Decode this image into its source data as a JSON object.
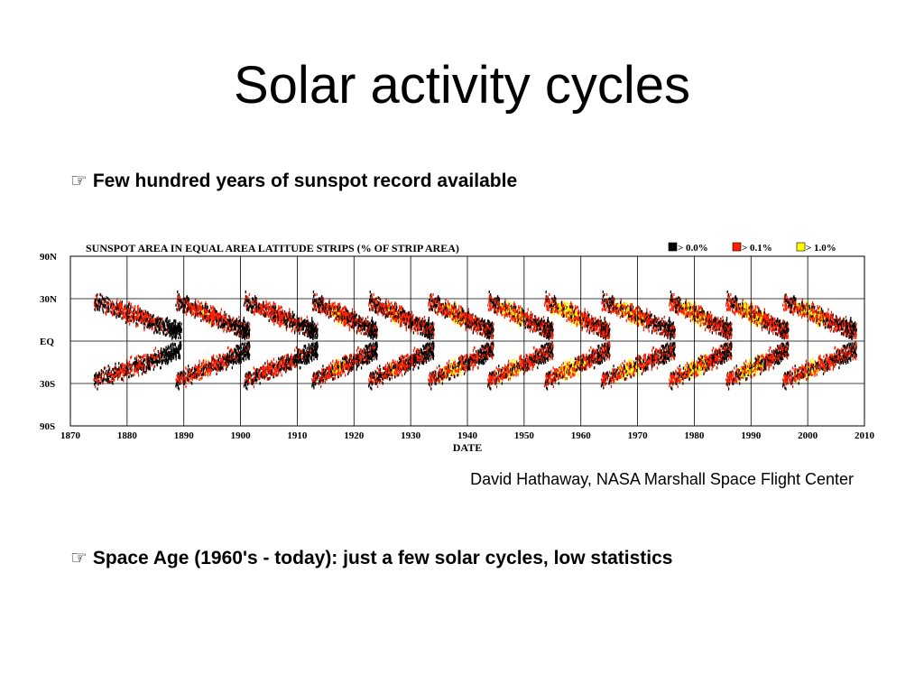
{
  "slide": {
    "title": "Solar activity cycles",
    "bullet_icon": "pointing-hand-icon",
    "bullets": [
      "Few hundred years of sunspot record available",
      "Space Age (1960's - today): just a few solar cycles, low statistics"
    ],
    "credit": "David Hathaway, NASA Marshall Space Flight Center"
  },
  "chart_data": {
    "type": "heatmap",
    "title": "SUNSPOT AREA IN EQUAL AREA LATITUDE STRIPS (% OF STRIP AREA)",
    "xlabel": "DATE",
    "ylabel": "",
    "xlim": [
      1870,
      2010
    ],
    "x_ticks": [
      1870,
      1880,
      1890,
      1900,
      1910,
      1920,
      1930,
      1940,
      1950,
      1960,
      1970,
      1980,
      1990,
      2000,
      2010
    ],
    "y_ticks": [
      "90N",
      "30N",
      "EQ",
      "30S",
      "90S"
    ],
    "y_tick_values": [
      90,
      30,
      0,
      -30,
      -90
    ],
    "legend": [
      {
        "label": "> 0.0%",
        "color": "#000000"
      },
      {
        "label": "> 0.1%",
        "color": "#ff2000"
      },
      {
        "label": "> 1.0%",
        "color": "#ffff00"
      }
    ],
    "legend_position": "top-right",
    "grid": true,
    "cycles": [
      {
        "start": 1874.0,
        "end": 1889.5,
        "intensity": 0.55
      },
      {
        "start": 1888.5,
        "end": 1901.5,
        "intensity": 0.65
      },
      {
        "start": 1900.5,
        "end": 1913.5,
        "intensity": 0.6
      },
      {
        "start": 1912.5,
        "end": 1924.0,
        "intensity": 0.7
      },
      {
        "start": 1922.5,
        "end": 1934.0,
        "intensity": 0.7
      },
      {
        "start": 1933.0,
        "end": 1944.5,
        "intensity": 0.8
      },
      {
        "start": 1943.5,
        "end": 1955.0,
        "intensity": 0.85
      },
      {
        "start": 1953.5,
        "end": 1965.0,
        "intensity": 1.0
      },
      {
        "start": 1963.5,
        "end": 1976.5,
        "intensity": 0.85
      },
      {
        "start": 1975.5,
        "end": 1986.5,
        "intensity": 0.95
      },
      {
        "start": 1985.5,
        "end": 1996.5,
        "intensity": 0.95
      },
      {
        "start": 1995.5,
        "end": 2008.5,
        "intensity": 0.85
      }
    ]
  }
}
